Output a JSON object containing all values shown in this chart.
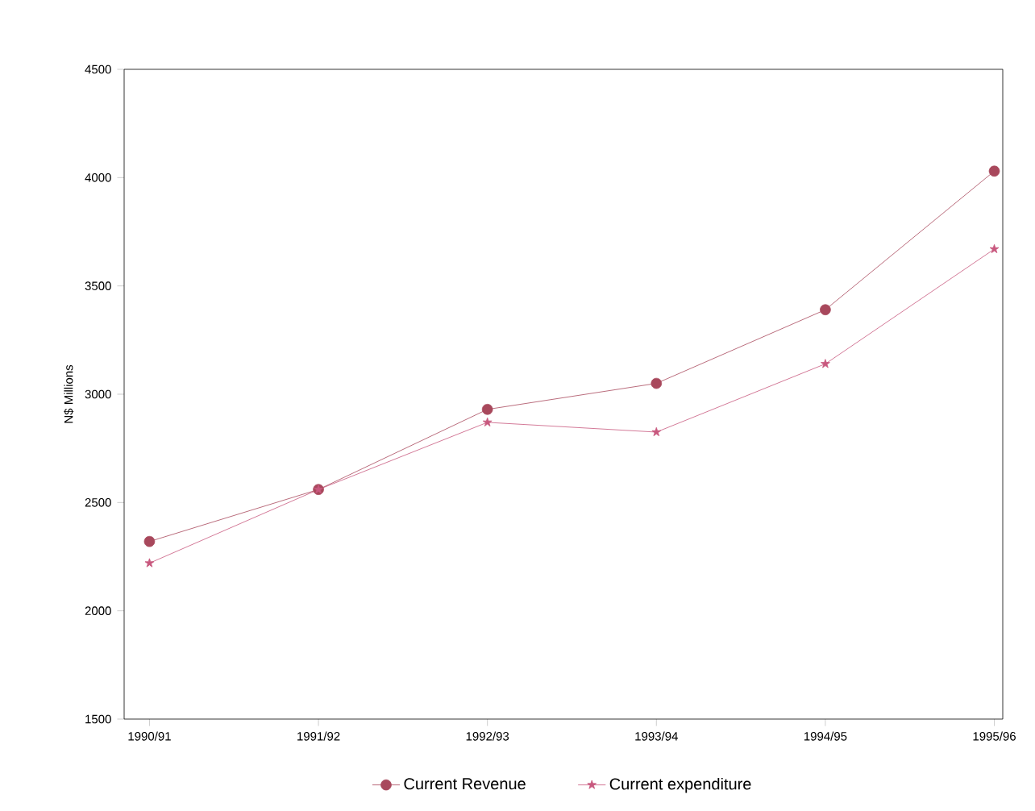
{
  "chart_data": {
    "type": "line",
    "ylabel": "N$ Millions",
    "categories": [
      "1990/91",
      "1991/92",
      "1992/93",
      "1993/94",
      "1994/95",
      "1995/96"
    ],
    "series": [
      {
        "name": "Current Revenue",
        "color": "#a8485c",
        "marker": "circle",
        "values": [
          2320,
          2560,
          2930,
          3050,
          3390,
          4030
        ]
      },
      {
        "name": "Current expenditure",
        "color": "#c8587e",
        "marker": "star",
        "values": [
          2220,
          2560,
          2870,
          2825,
          3140,
          3670
        ]
      }
    ],
    "ylim": [
      1500,
      4500
    ],
    "yticks": [
      1500,
      2000,
      2500,
      3000,
      3500,
      4000,
      4500
    ],
    "grid": false,
    "legend": "bottom",
    "line_style": "solid"
  }
}
